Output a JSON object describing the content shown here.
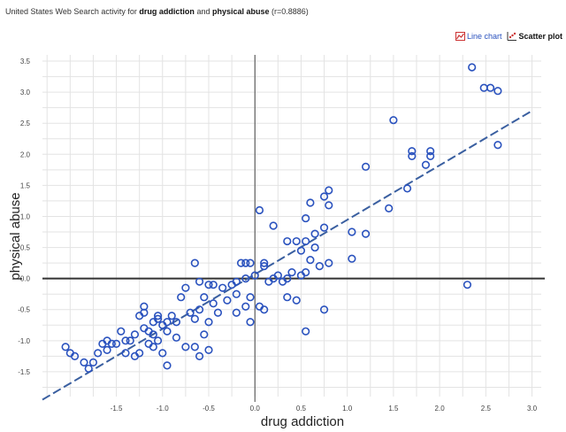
{
  "title": {
    "prefix": "United States Web Search activity for",
    "term1": "drug addiction",
    "joiner": "and",
    "term2": "physical abuse",
    "suffix": "(r=0.8886)"
  },
  "toolbar": {
    "line_chart_label": "Line chart",
    "scatter_plot_label": "Scatter plot"
  },
  "colors": {
    "point": "#2a52be",
    "trend": "#3a5fa0",
    "axis": "#444444",
    "grid": "#e3e3e3"
  },
  "chart_data": {
    "type": "scatter",
    "title": "",
    "xlabel": "drug addiction",
    "ylabel": "physical abuse",
    "xlim": [
      -2.3,
      3.1
    ],
    "ylim": [
      -1.9,
      3.6
    ],
    "xticks": [
      -1.5,
      -1.0,
      -0.5,
      0.0,
      0.5,
      1.0,
      1.5,
      2.0,
      2.5,
      3.0
    ],
    "xtick_labels": [
      "-1.5",
      "-1.0",
      "-0.5",
      "0.0",
      "0.5",
      "1.0",
      "1.5",
      "2.0",
      "2.5",
      "3.0"
    ],
    "yticks": [
      -1.5,
      -1.0,
      -0.5,
      0.0,
      0.5,
      1.0,
      1.5,
      2.0,
      2.5,
      3.0,
      3.5
    ],
    "ytick_labels": [
      "-1.5",
      "-1.0",
      "-0.5",
      "0.0",
      "0.5",
      "1.0",
      "1.5",
      "2.0",
      "2.5",
      "3.0",
      "3.5"
    ],
    "grid": true,
    "trendline": {
      "x": [
        -2.3,
        3.0
      ],
      "y": [
        -1.95,
        2.7
      ]
    },
    "points": [
      [
        2.35,
        3.4
      ],
      [
        2.48,
        3.07
      ],
      [
        2.55,
        3.07
      ],
      [
        2.63,
        3.02
      ],
      [
        2.63,
        2.15
      ],
      [
        2.3,
        -0.1
      ],
      [
        1.5,
        2.55
      ],
      [
        1.7,
        2.05
      ],
      [
        1.7,
        1.97
      ],
      [
        1.9,
        2.05
      ],
      [
        1.9,
        1.97
      ],
      [
        1.85,
        1.83
      ],
      [
        1.65,
        1.45
      ],
      [
        1.2,
        1.8
      ],
      [
        1.45,
        1.13
      ],
      [
        1.2,
        0.72
      ],
      [
        1.05,
        0.75
      ],
      [
        1.05,
        0.32
      ],
      [
        0.8,
        1.42
      ],
      [
        0.75,
        1.32
      ],
      [
        0.8,
        1.18
      ],
      [
        0.6,
        1.22
      ],
      [
        0.55,
        0.97
      ],
      [
        0.75,
        0.82
      ],
      [
        0.65,
        0.72
      ],
      [
        0.55,
        0.6
      ],
      [
        0.65,
        0.5
      ],
      [
        0.5,
        0.45
      ],
      [
        0.45,
        0.6
      ],
      [
        0.35,
        0.6
      ],
      [
        0.8,
        0.25
      ],
      [
        0.7,
        0.2
      ],
      [
        0.6,
        0.3
      ],
      [
        0.55,
        0.1
      ],
      [
        0.5,
        0.05
      ],
      [
        0.4,
        0.1
      ],
      [
        0.35,
        0.0
      ],
      [
        0.3,
        -0.05
      ],
      [
        0.25,
        0.05
      ],
      [
        0.2,
        0.0
      ],
      [
        0.15,
        -0.05
      ],
      [
        0.1,
        0.25
      ],
      [
        0.05,
        1.1
      ],
      [
        0.2,
        0.85
      ],
      [
        0.75,
        -0.5
      ],
      [
        0.55,
        -0.85
      ],
      [
        0.45,
        -0.35
      ],
      [
        0.35,
        -0.3
      ],
      [
        0.1,
        -0.5
      ],
      [
        0.1,
        0.2
      ],
      [
        0.0,
        0.05
      ],
      [
        -0.05,
        0.25
      ],
      [
        -0.1,
        0.25
      ],
      [
        -0.15,
        0.25
      ],
      [
        -0.1,
        0.0
      ],
      [
        -0.2,
        -0.05
      ],
      [
        -0.25,
        -0.1
      ],
      [
        -0.35,
        -0.15
      ],
      [
        -0.45,
        -0.1
      ],
      [
        -0.5,
        -0.1
      ],
      [
        -0.6,
        -0.05
      ],
      [
        -0.65,
        0.25
      ],
      [
        -0.55,
        -0.3
      ],
      [
        -0.6,
        -0.5
      ],
      [
        -0.65,
        -0.65
      ],
      [
        -0.5,
        -0.7
      ],
      [
        -0.55,
        -0.9
      ],
      [
        -0.45,
        -0.4
      ],
      [
        -0.4,
        -0.55
      ],
      [
        -0.3,
        -0.35
      ],
      [
        -0.2,
        -0.55
      ],
      [
        -0.1,
        -0.45
      ],
      [
        -0.05,
        -0.7
      ],
      [
        0.05,
        -0.45
      ],
      [
        -0.2,
        -0.25
      ],
      [
        -0.05,
        -0.3
      ],
      [
        -0.75,
        -0.15
      ],
      [
        -0.8,
        -0.3
      ],
      [
        -0.85,
        -0.95
      ],
      [
        -0.9,
        -0.6
      ],
      [
        -0.95,
        -0.7
      ],
      [
        -1.0,
        -0.75
      ],
      [
        -1.05,
        -0.6
      ],
      [
        -1.1,
        -0.9
      ],
      [
        -1.15,
        -0.85
      ],
      [
        -1.2,
        -0.8
      ],
      [
        -1.25,
        -0.6
      ],
      [
        -1.2,
        -0.55
      ],
      [
        -1.2,
        -0.45
      ],
      [
        -1.1,
        -0.7
      ],
      [
        -1.05,
        -0.65
      ],
      [
        -1.3,
        -0.9
      ],
      [
        -1.35,
        -1.0
      ],
      [
        -1.4,
        -1.0
      ],
      [
        -1.45,
        -0.85
      ],
      [
        -1.5,
        -1.05
      ],
      [
        -1.55,
        -1.05
      ],
      [
        -1.6,
        -1.0
      ],
      [
        -1.65,
        -1.05
      ],
      [
        -1.6,
        -1.15
      ],
      [
        -1.7,
        -1.2
      ],
      [
        -1.75,
        -1.35
      ],
      [
        -1.8,
        -1.45
      ],
      [
        -1.85,
        -1.35
      ],
      [
        -1.95,
        -1.25
      ],
      [
        -2.0,
        -1.2
      ],
      [
        -2.05,
        -1.1
      ],
      [
        -1.4,
        -1.2
      ],
      [
        -1.3,
        -1.25
      ],
      [
        -1.25,
        -1.2
      ],
      [
        -1.15,
        -1.05
      ],
      [
        -1.05,
        -1.0
      ],
      [
        -0.95,
        -0.85
      ],
      [
        -0.85,
        -0.7
      ],
      [
        -0.7,
        -0.55
      ],
      [
        -0.65,
        -1.1
      ],
      [
        -0.75,
        -1.1
      ],
      [
        -0.6,
        -1.25
      ],
      [
        -0.5,
        -1.15
      ],
      [
        -1.0,
        -1.2
      ],
      [
        -1.1,
        -1.1
      ],
      [
        -0.95,
        -1.4
      ]
    ]
  }
}
